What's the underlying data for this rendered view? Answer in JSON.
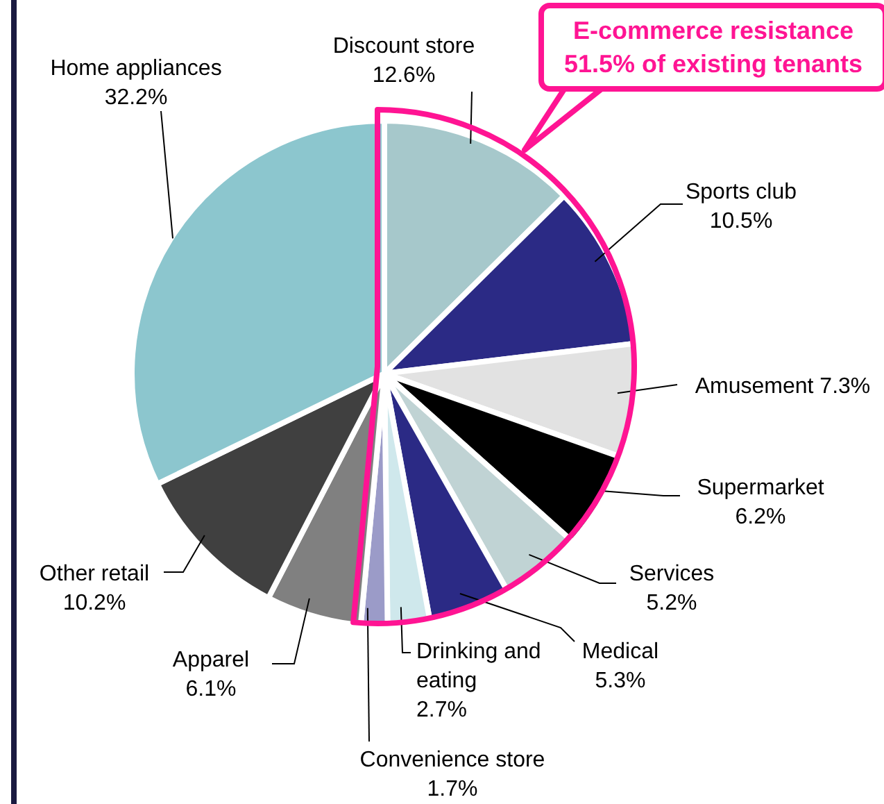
{
  "chart_data": {
    "type": "pie",
    "categories": [
      "Discount store",
      "Sports club",
      "Amusement",
      "Supermarket",
      "Services",
      "Medical",
      "Drinking and eating",
      "Convenience store",
      "Apparel",
      "Other retail",
      "Home appliances"
    ],
    "values": [
      12.6,
      10.5,
      7.3,
      6.2,
      5.2,
      5.3,
      2.7,
      1.7,
      6.1,
      10.2,
      32.2
    ],
    "value_labels": [
      "12.6%",
      "10.5%",
      "7.3%",
      "6.2%",
      "5.2%",
      "5.3%",
      "2.7%",
      "1.7%",
      "6.1%",
      "10.2%",
      "32.2%"
    ],
    "colors": [
      "#a6c8cb",
      "#2b2a85",
      "#e2e2e2",
      "#000000",
      "#c0d3d4",
      "#2b2a85",
      "#cfe8ec",
      "#9b9bc8",
      "#808080",
      "#404040",
      "#8cc6ce"
    ],
    "annotations": [
      "E-commerce resistance 51.5% of existing tenants"
    ]
  }
}
